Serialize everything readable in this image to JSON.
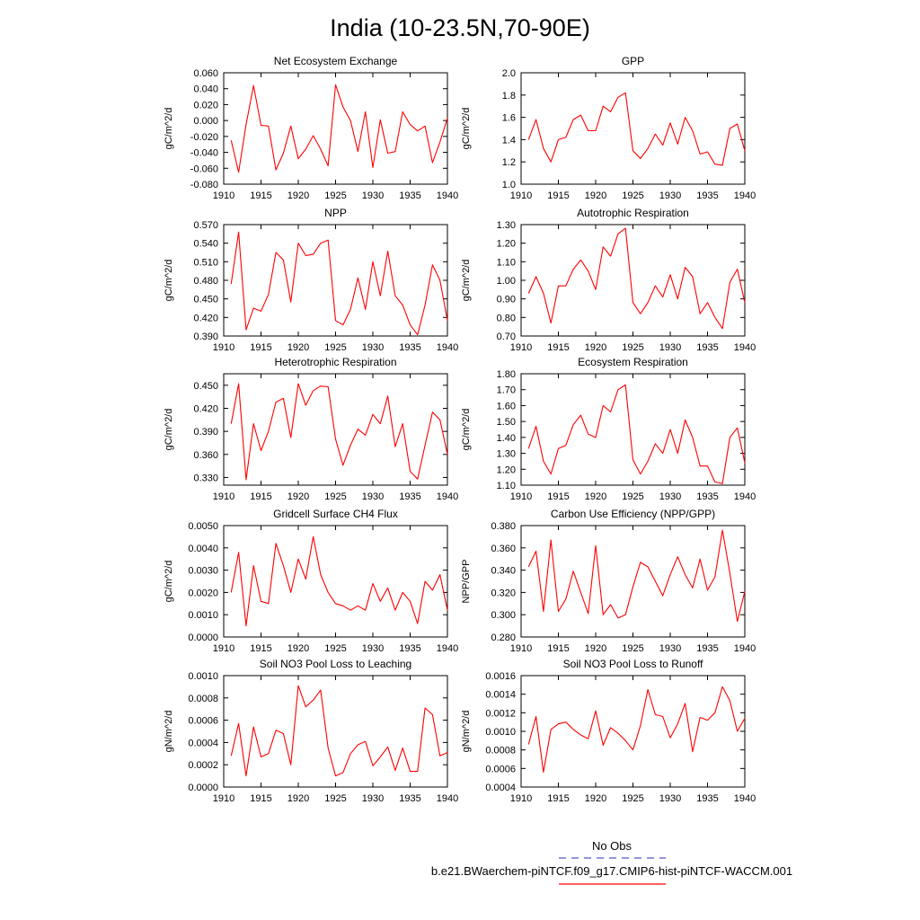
{
  "page_title": "India (10-23.5N,70-90E)",
  "legend": {
    "obs_label": "No Obs",
    "obs_color": "#5555cc",
    "model_label": "b.e21.BWaerchem-piNTCF.f09_g17.CMIP6-hist-piNTCF-WACCM.001",
    "model_color": "#ff0000"
  },
  "chart_data": [
    {
      "type": "line",
      "title": "Net Ecosystem Exchange",
      "ylabel": "gC/m^2/d",
      "xlim": [
        1910,
        1940
      ],
      "ylim": [
        -0.08,
        0.06
      ],
      "xticks": [
        1910,
        1915,
        1920,
        1925,
        1930,
        1935,
        1940
      ],
      "yticks": [
        -0.08,
        -0.06,
        -0.04,
        -0.02,
        0.0,
        0.02,
        0.04,
        0.06
      ],
      "ytick_labels": [
        "-0.080",
        "-0.060",
        "-0.040",
        "-0.020",
        "0.000",
        "0.020",
        "0.040",
        "0.060"
      ],
      "x": [
        1911,
        1912,
        1913,
        1914,
        1915,
        1916,
        1917,
        1918,
        1919,
        1920,
        1921,
        1922,
        1923,
        1924,
        1925,
        1926,
        1927,
        1928,
        1929,
        1930,
        1931,
        1932,
        1933,
        1934,
        1935,
        1936,
        1937,
        1938,
        1939,
        1940
      ],
      "values": [
        -0.025,
        -0.065,
        -0.005,
        0.044,
        -0.006,
        -0.007,
        -0.062,
        -0.041,
        -0.007,
        -0.048,
        -0.036,
        -0.019,
        -0.036,
        -0.057,
        0.045,
        0.017,
        0.0,
        -0.039,
        0.011,
        -0.059,
        0.001,
        -0.041,
        -0.039,
        0.011,
        -0.005,
        -0.013,
        -0.007,
        -0.053,
        -0.027,
        0.003
      ]
    },
    {
      "type": "line",
      "title": "GPP",
      "ylabel": "gC/m^2/d",
      "xlim": [
        1910,
        1940
      ],
      "ylim": [
        1.0,
        2.0
      ],
      "xticks": [
        1910,
        1915,
        1920,
        1925,
        1930,
        1935,
        1940
      ],
      "yticks": [
        1.0,
        1.2,
        1.4,
        1.6,
        1.8,
        2.0
      ],
      "ytick_labels": [
        "1.0",
        "1.2",
        "1.4",
        "1.6",
        "1.8",
        "2.0"
      ],
      "x": [
        1911,
        1912,
        1913,
        1914,
        1915,
        1916,
        1917,
        1918,
        1919,
        1920,
        1921,
        1922,
        1923,
        1924,
        1925,
        1926,
        1927,
        1928,
        1929,
        1930,
        1931,
        1932,
        1933,
        1934,
        1935,
        1936,
        1937,
        1938,
        1939,
        1940
      ],
      "values": [
        1.4,
        1.58,
        1.32,
        1.2,
        1.4,
        1.42,
        1.58,
        1.62,
        1.48,
        1.48,
        1.7,
        1.65,
        1.78,
        1.82,
        1.3,
        1.23,
        1.32,
        1.45,
        1.35,
        1.55,
        1.36,
        1.6,
        1.48,
        1.27,
        1.29,
        1.18,
        1.17,
        1.5,
        1.54,
        1.3
      ]
    },
    {
      "type": "line",
      "title": "NPP",
      "ylabel": "gC/m^2/d",
      "xlim": [
        1910,
        1940
      ],
      "ylim": [
        0.39,
        0.57
      ],
      "xticks": [
        1910,
        1915,
        1920,
        1925,
        1930,
        1935,
        1940
      ],
      "yticks": [
        0.39,
        0.42,
        0.45,
        0.48,
        0.51,
        0.54,
        0.57
      ],
      "ytick_labels": [
        "0.390",
        "0.420",
        "0.450",
        "0.480",
        "0.510",
        "0.540",
        "0.570"
      ],
      "x": [
        1911,
        1912,
        1913,
        1914,
        1915,
        1916,
        1917,
        1918,
        1919,
        1920,
        1921,
        1922,
        1923,
        1924,
        1925,
        1926,
        1927,
        1928,
        1929,
        1930,
        1931,
        1932,
        1933,
        1934,
        1935,
        1936,
        1937,
        1938,
        1939,
        1940
      ],
      "values": [
        0.474,
        0.558,
        0.4,
        0.435,
        0.43,
        0.457,
        0.525,
        0.513,
        0.445,
        0.54,
        0.52,
        0.522,
        0.54,
        0.545,
        0.415,
        0.408,
        0.433,
        0.484,
        0.433,
        0.51,
        0.455,
        0.527,
        0.455,
        0.44,
        0.408,
        0.392,
        0.44,
        0.505,
        0.48,
        0.415
      ]
    },
    {
      "type": "line",
      "title": "Autotrophic Respiration",
      "ylabel": "gC/m^2/d",
      "xlim": [
        1910,
        1940
      ],
      "ylim": [
        0.7,
        1.3
      ],
      "xticks": [
        1910,
        1915,
        1920,
        1925,
        1930,
        1935,
        1940
      ],
      "yticks": [
        0.7,
        0.8,
        0.9,
        1.0,
        1.1,
        1.2,
        1.3
      ],
      "ytick_labels": [
        "0.70",
        "0.80",
        "0.90",
        "1.00",
        "1.10",
        "1.20",
        "1.30"
      ],
      "x": [
        1911,
        1912,
        1913,
        1914,
        1915,
        1916,
        1917,
        1918,
        1919,
        1920,
        1921,
        1922,
        1923,
        1924,
        1925,
        1926,
        1927,
        1928,
        1929,
        1930,
        1931,
        1932,
        1933,
        1934,
        1935,
        1936,
        1937,
        1938,
        1939,
        1940
      ],
      "values": [
        0.93,
        1.02,
        0.93,
        0.77,
        0.97,
        0.97,
        1.06,
        1.11,
        1.05,
        0.95,
        1.18,
        1.13,
        1.25,
        1.28,
        0.88,
        0.82,
        0.88,
        0.97,
        0.91,
        1.03,
        0.9,
        1.07,
        1.02,
        0.82,
        0.88,
        0.8,
        0.74,
        0.99,
        1.06,
        0.88
      ]
    },
    {
      "type": "line",
      "title": "Heterotrophic Respiration",
      "ylabel": "gC/m^2/d",
      "xlim": [
        1910,
        1940
      ],
      "ylim": [
        0.32,
        0.465
      ],
      "xticks": [
        1910,
        1915,
        1920,
        1925,
        1930,
        1935,
        1940
      ],
      "yticks": [
        0.33,
        0.36,
        0.39,
        0.42,
        0.45
      ],
      "ytick_labels": [
        "0.330",
        "0.360",
        "0.390",
        "0.420",
        "0.450"
      ],
      "x": [
        1911,
        1912,
        1913,
        1914,
        1915,
        1916,
        1917,
        1918,
        1919,
        1920,
        1921,
        1922,
        1923,
        1924,
        1925,
        1926,
        1927,
        1928,
        1929,
        1930,
        1931,
        1932,
        1933,
        1934,
        1935,
        1936,
        1937,
        1938,
        1939,
        1940
      ],
      "values": [
        0.4,
        0.452,
        0.327,
        0.4,
        0.365,
        0.39,
        0.428,
        0.433,
        0.382,
        0.452,
        0.424,
        0.443,
        0.449,
        0.448,
        0.38,
        0.346,
        0.372,
        0.393,
        0.385,
        0.412,
        0.4,
        0.436,
        0.37,
        0.4,
        0.338,
        0.328,
        0.372,
        0.415,
        0.405,
        0.36
      ]
    },
    {
      "type": "line",
      "title": "Ecosystem Respiration",
      "ylabel": "gC/m^2/d",
      "xlim": [
        1910,
        1940
      ],
      "ylim": [
        1.1,
        1.8
      ],
      "xticks": [
        1910,
        1915,
        1920,
        1925,
        1930,
        1935,
        1940
      ],
      "yticks": [
        1.1,
        1.2,
        1.3,
        1.4,
        1.5,
        1.6,
        1.7,
        1.8
      ],
      "ytick_labels": [
        "1.10",
        "1.20",
        "1.30",
        "1.40",
        "1.50",
        "1.60",
        "1.70",
        "1.80"
      ],
      "x": [
        1911,
        1912,
        1913,
        1914,
        1915,
        1916,
        1917,
        1918,
        1919,
        1920,
        1921,
        1922,
        1923,
        1924,
        1925,
        1926,
        1927,
        1928,
        1929,
        1930,
        1931,
        1932,
        1933,
        1934,
        1935,
        1936,
        1937,
        1938,
        1939,
        1940
      ],
      "values": [
        1.33,
        1.47,
        1.25,
        1.17,
        1.33,
        1.35,
        1.48,
        1.54,
        1.42,
        1.4,
        1.6,
        1.56,
        1.7,
        1.73,
        1.26,
        1.17,
        1.25,
        1.36,
        1.3,
        1.45,
        1.3,
        1.51,
        1.4,
        1.22,
        1.22,
        1.12,
        1.11,
        1.4,
        1.46,
        1.24
      ]
    },
    {
      "type": "line",
      "title": "Gridcell Surface CH4 Flux",
      "ylabel": "gC/m^2/d",
      "xlim": [
        1910,
        1940
      ],
      "ylim": [
        0.0,
        0.005
      ],
      "xticks": [
        1910,
        1915,
        1920,
        1925,
        1930,
        1935,
        1940
      ],
      "yticks": [
        0.0,
        0.001,
        0.002,
        0.003,
        0.004,
        0.005
      ],
      "ytick_labels": [
        "0.0000",
        "0.0010",
        "0.0020",
        "0.0030",
        "0.0040",
        "0.0050"
      ],
      "x": [
        1911,
        1912,
        1913,
        1914,
        1915,
        1916,
        1917,
        1918,
        1919,
        1920,
        1921,
        1922,
        1923,
        1924,
        1925,
        1926,
        1927,
        1928,
        1929,
        1930,
        1931,
        1932,
        1933,
        1934,
        1935,
        1936,
        1937,
        1938,
        1939,
        1940
      ],
      "values": [
        0.002,
        0.0038,
        0.0005,
        0.0032,
        0.0016,
        0.0015,
        0.0042,
        0.0032,
        0.002,
        0.0035,
        0.0026,
        0.0045,
        0.0028,
        0.002,
        0.0015,
        0.0014,
        0.0012,
        0.0014,
        0.0012,
        0.0024,
        0.0016,
        0.0022,
        0.0012,
        0.002,
        0.0016,
        0.0006,
        0.0025,
        0.0021,
        0.0028,
        0.0012
      ]
    },
    {
      "type": "line",
      "title": "Carbon Use Efficiency (NPP/GPP)",
      "ylabel": "NPP/GPP",
      "xlim": [
        1910,
        1940
      ],
      "ylim": [
        0.28,
        0.38
      ],
      "xticks": [
        1910,
        1915,
        1920,
        1925,
        1930,
        1935,
        1940
      ],
      "yticks": [
        0.28,
        0.3,
        0.32,
        0.34,
        0.36,
        0.38
      ],
      "ytick_labels": [
        "0.280",
        "0.300",
        "0.320",
        "0.340",
        "0.360",
        "0.380"
      ],
      "x": [
        1911,
        1912,
        1913,
        1914,
        1915,
        1916,
        1917,
        1918,
        1919,
        1920,
        1921,
        1922,
        1923,
        1924,
        1925,
        1926,
        1927,
        1928,
        1929,
        1930,
        1931,
        1932,
        1933,
        1934,
        1935,
        1936,
        1937,
        1938,
        1939,
        1940
      ],
      "values": [
        0.343,
        0.357,
        0.303,
        0.367,
        0.303,
        0.314,
        0.339,
        0.32,
        0.301,
        0.362,
        0.3,
        0.309,
        0.297,
        0.3,
        0.325,
        0.347,
        0.343,
        0.33,
        0.317,
        0.336,
        0.352,
        0.336,
        0.324,
        0.35,
        0.322,
        0.334,
        0.376,
        0.337,
        0.294,
        0.321
      ]
    },
    {
      "type": "line",
      "title": "Soil NO3 Pool Loss to Leaching",
      "ylabel": "gN/m^2/d",
      "xlim": [
        1910,
        1940
      ],
      "ylim": [
        0.0,
        0.001
      ],
      "xticks": [
        1910,
        1915,
        1920,
        1925,
        1930,
        1935,
        1940
      ],
      "yticks": [
        0.0,
        0.0002,
        0.0004,
        0.0006,
        0.0008,
        0.001
      ],
      "ytick_labels": [
        "0.0000",
        "0.0002",
        "0.0004",
        "0.0006",
        "0.0008",
        "0.0010"
      ],
      "x": [
        1911,
        1912,
        1913,
        1914,
        1915,
        1916,
        1917,
        1918,
        1919,
        1920,
        1921,
        1922,
        1923,
        1924,
        1925,
        1926,
        1927,
        1928,
        1929,
        1930,
        1931,
        1932,
        1933,
        1934,
        1935,
        1936,
        1937,
        1938,
        1939,
        1940
      ],
      "values": [
        0.00028,
        0.00057,
        0.0001,
        0.00054,
        0.00027,
        0.0003,
        0.00051,
        0.00048,
        0.0002,
        0.00091,
        0.00072,
        0.00078,
        0.00087,
        0.00035,
        0.0001,
        0.00013,
        0.0003,
        0.00038,
        0.00041,
        0.00019,
        0.00027,
        0.00036,
        0.00015,
        0.00035,
        0.00014,
        0.00014,
        0.00071,
        0.00065,
        0.00028,
        0.00031
      ]
    },
    {
      "type": "line",
      "title": "Soil NO3 Pool Loss to Runoff",
      "ylabel": "gN/m^2/d",
      "xlim": [
        1910,
        1940
      ],
      "ylim": [
        0.0004,
        0.0016
      ],
      "xticks": [
        1910,
        1915,
        1920,
        1925,
        1930,
        1935,
        1940
      ],
      "yticks": [
        0.0004,
        0.0006,
        0.0008,
        0.001,
        0.0012,
        0.0014,
        0.0016
      ],
      "ytick_labels": [
        "0.0004",
        "0.0006",
        "0.0008",
        "0.0010",
        "0.0012",
        "0.0014",
        "0.0016"
      ],
      "x": [
        1911,
        1912,
        1913,
        1914,
        1915,
        1916,
        1917,
        1918,
        1919,
        1920,
        1921,
        1922,
        1923,
        1924,
        1925,
        1926,
        1927,
        1928,
        1929,
        1930,
        1931,
        1932,
        1933,
        1934,
        1935,
        1936,
        1937,
        1938,
        1939,
        1940
      ],
      "values": [
        0.00086,
        0.00116,
        0.00056,
        0.00102,
        0.00108,
        0.0011,
        0.00102,
        0.00096,
        0.00092,
        0.00122,
        0.00085,
        0.00104,
        0.00098,
        0.0009,
        0.0008,
        0.00106,
        0.00145,
        0.00118,
        0.00116,
        0.00093,
        0.00108,
        0.0013,
        0.00078,
        0.00115,
        0.00112,
        0.0012,
        0.00148,
        0.00133,
        0.001,
        0.00114
      ]
    }
  ]
}
